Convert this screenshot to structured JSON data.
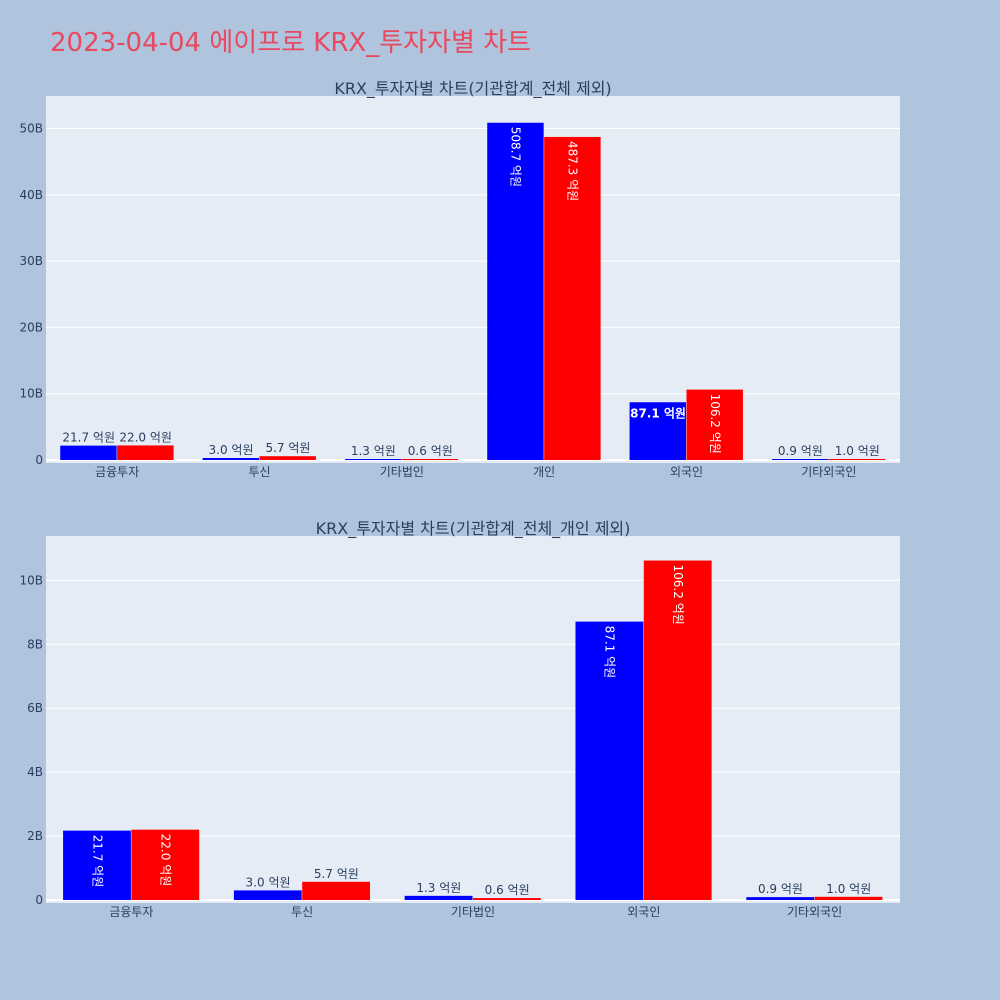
{
  "title": "2023-04-04 에이프로 KRX_투자자별 차트",
  "colors": {
    "buy": "#0000ff",
    "sell": "#ff0000",
    "plot_bg": "#e5ecf6",
    "page_bg": "#b0c4de"
  },
  "chart_data": [
    {
      "type": "bar",
      "title": "KRX_투자자별 차트(기관합계_전체 제외)",
      "categories": [
        "금융투자",
        "투신",
        "기타법인",
        "개인",
        "외국인",
        "기타외국인"
      ],
      "series": [
        {
          "values": [
            2.17,
            0.3,
            0.13,
            50.87,
            8.71,
            0.09
          ],
          "labels": [
            "21.7 억원",
            "3.0 억원",
            "1.3 억원",
            "508.7 억원",
            "87.1 억원",
            "0.9 억원"
          ]
        },
        {
          "values": [
            2.2,
            0.57,
            0.06,
            48.73,
            10.62,
            0.1
          ],
          "labels": [
            "22.0 억원",
            "5.7 억원",
            "0.6 억원",
            "487.3 억원",
            "106.2 억원",
            "1.0 억원"
          ]
        }
      ],
      "yticks": [
        "0",
        "10B",
        "20B",
        "30B",
        "40B",
        "50B"
      ],
      "ylim": [
        0,
        54
      ]
    },
    {
      "type": "bar",
      "title": "KRX_투자자별 차트(기관합계_전체_개인 제외)",
      "categories": [
        "금융투자",
        "투신",
        "기타법인",
        "외국인",
        "기타외국인"
      ],
      "series": [
        {
          "values": [
            2.17,
            0.3,
            0.13,
            8.71,
            0.09
          ],
          "labels": [
            "21.7 억원",
            "3.0 억원",
            "1.3 억원",
            "87.1 억원",
            "0.9 억원"
          ]
        },
        {
          "values": [
            2.2,
            0.57,
            0.06,
            10.62,
            0.1
          ],
          "labels": [
            "22.0 억원",
            "5.7 억원",
            "0.6 억원",
            "106.2 억원",
            "1.0 억원"
          ]
        }
      ],
      "yticks": [
        "0",
        "2B",
        "4B",
        "6B",
        "8B",
        "10B"
      ],
      "ylim": [
        0,
        11.2
      ]
    }
  ]
}
